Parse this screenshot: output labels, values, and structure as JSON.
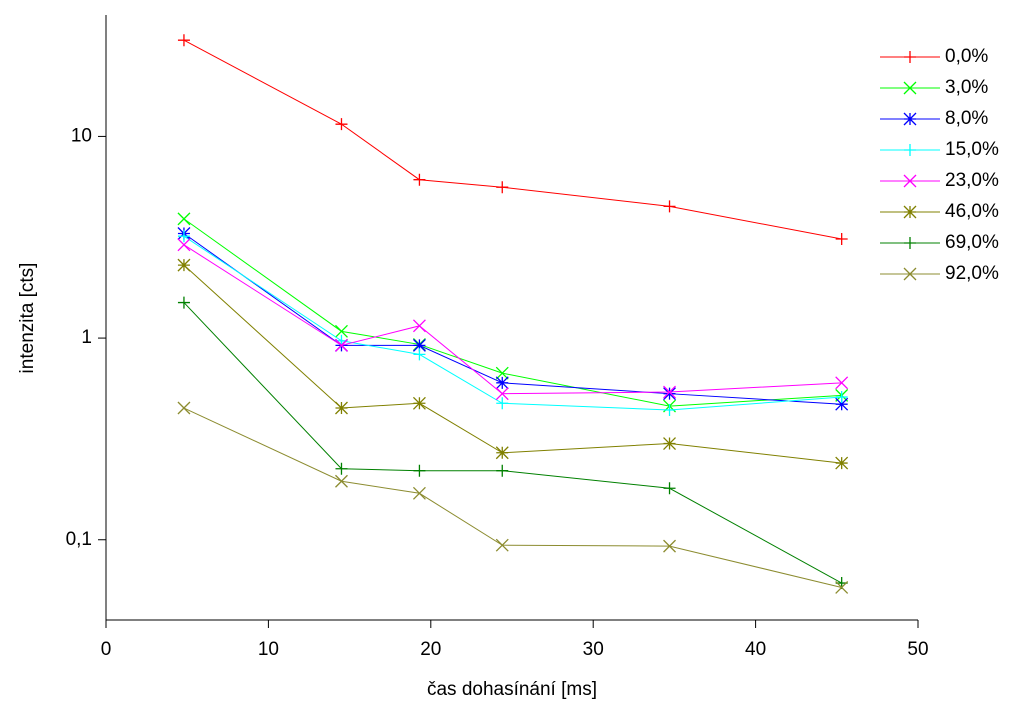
{
  "chart_data": {
    "type": "line",
    "x_label": "čas dohasínání [ms]",
    "y_label": "intenzita [cts]",
    "x": [
      4.8,
      14.5,
      19.3,
      24.4,
      34.7,
      45.3
    ],
    "xlim": [
      0,
      50
    ],
    "xticks": [
      0,
      10,
      20,
      30,
      40,
      50
    ],
    "ylim": [
      0.04,
      40
    ],
    "y_scale": "log",
    "yticks": [
      10,
      1,
      {
        "value": 0.1,
        "label": "0,1"
      }
    ],
    "legend": "top-right",
    "series": [
      {
        "name": "0,0%",
        "color": "#ff0000",
        "marker": "plus",
        "values": [
          30,
          11.5,
          6.1,
          5.6,
          4.5,
          3.1
        ]
      },
      {
        "name": "3,0%",
        "color": "#00ff00",
        "marker": "cross",
        "values": [
          3.9,
          1.08,
          0.93,
          0.67,
          0.46,
          0.52
        ]
      },
      {
        "name": "8,0%",
        "color": "#0000ff",
        "marker": "star",
        "values": [
          3.3,
          0.92,
          0.92,
          0.6,
          0.53,
          0.47
        ]
      },
      {
        "name": "15,0%",
        "color": "#00ffff",
        "marker": "plus",
        "values": [
          3.2,
          0.97,
          0.83,
          0.475,
          0.44,
          0.51
        ]
      },
      {
        "name": "23,0%",
        "color": "#ff00ff",
        "marker": "cross",
        "values": [
          2.9,
          0.92,
          1.15,
          0.53,
          0.54,
          0.6
        ]
      },
      {
        "name": "46,0%",
        "color": "#808000",
        "marker": "star",
        "values": [
          2.3,
          0.45,
          0.475,
          0.27,
          0.3,
          0.24
        ]
      },
      {
        "name": "69,0%",
        "color": "#008000",
        "marker": "plus",
        "values": [
          1.5,
          0.225,
          0.22,
          0.22,
          0.18,
          0.061
        ]
      },
      {
        "name": "92,0%",
        "color": "#8c8c30",
        "marker": "cross",
        "values": [
          0.45,
          0.195,
          0.17,
          0.094,
          0.093,
          0.058
        ]
      }
    ]
  }
}
